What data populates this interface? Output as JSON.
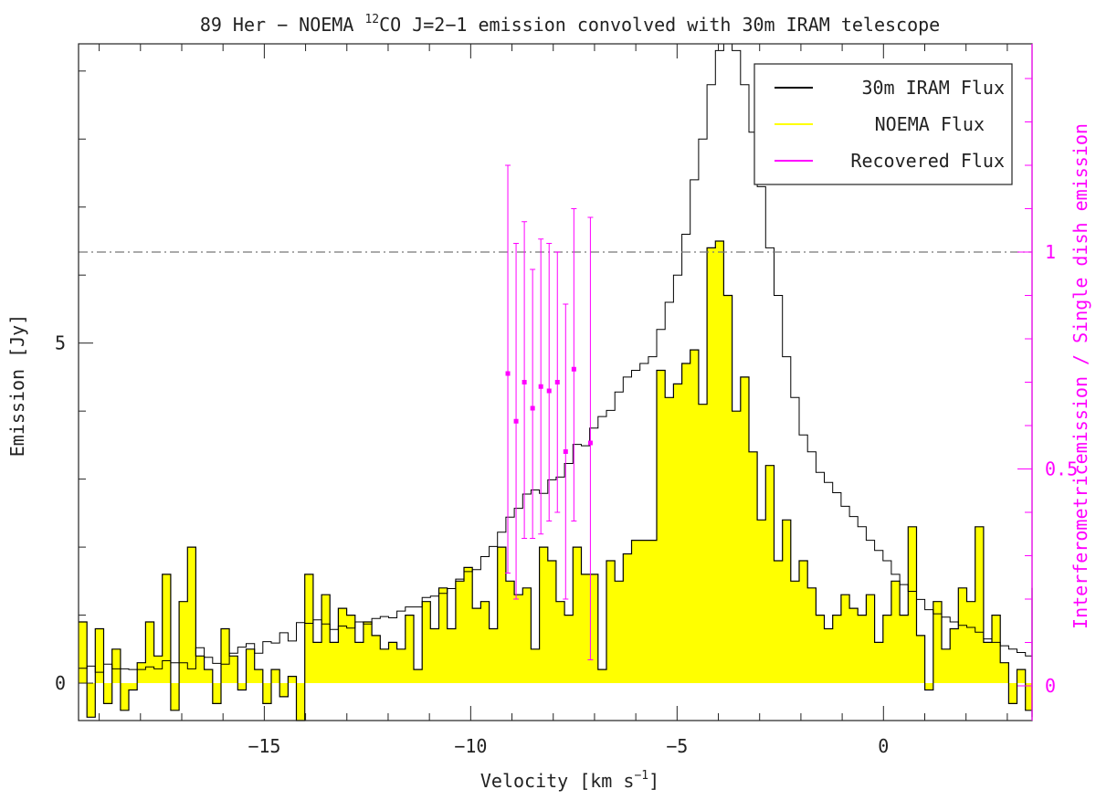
{
  "chart_data": {
    "type": "histogram",
    "title_prefix": "89 Her − NOEMA ",
    "title_sup": "12",
    "title_suffix": "CO J=2−1 emission convolved with 30m IRAM telescope",
    "xlabel_main": "Velocity [km s",
    "xlabel_sup": "−1",
    "xlabel_end": "]",
    "ylabel_left": "Emission [Jy]",
    "ylabel_right_a": "Interferometric",
    "ylabel_right_b": "emission / Single dish emission",
    "xlim": [
      -19.5,
      3.6
    ],
    "ylim_left": [
      -0.55,
      9.4
    ],
    "ylim_right": [
      -0.08,
      1.48
    ],
    "x_ticks": [
      {
        "value": -15,
        "label": "−15"
      },
      {
        "value": -10,
        "label": "−10"
      },
      {
        "value": -5,
        "label": "−5"
      },
      {
        "value": 0,
        "label": "0"
      }
    ],
    "y_ticks_left": [
      {
        "value": 0,
        "label": "0"
      },
      {
        "value": 5,
        "label": "5"
      }
    ],
    "y_ticks_right": [
      {
        "value": 0,
        "label": "0"
      },
      {
        "value": 0.5,
        "label": "0.5"
      },
      {
        "value": 1,
        "label": "1"
      }
    ],
    "reference_line_right": 1,
    "colors": {
      "iram": "#000000",
      "noema_fill": "#ffff00",
      "recovered": "#ff00ff",
      "right_axis": "#ff00ff",
      "reference": "#777777"
    },
    "legend": {
      "position": "top-right",
      "entries": [
        "30m IRAM Flux",
        "NOEMA Flux",
        "Recovered Flux"
      ]
    },
    "series": [
      {
        "name": "30m IRAM Flux",
        "step": 0.203,
        "x_start": -19.5,
        "values": [
          0.22,
          0.25,
          0.16,
          0.28,
          0.21,
          0.21,
          0.2,
          0.2,
          0.24,
          0.21,
          0.33,
          0.3,
          0.3,
          0.21,
          0.52,
          0.38,
          0.29,
          0.28,
          0.44,
          0.53,
          0.58,
          0.44,
          0.61,
          0.59,
          0.74,
          0.62,
          0.89,
          0.88,
          0.93,
          0.87,
          0.79,
          0.84,
          0.81,
          0.9,
          0.87,
          0.95,
          0.98,
          0.96,
          1.06,
          1.12,
          1.12,
          1.26,
          1.28,
          1.32,
          1.39,
          1.53,
          1.64,
          1.67,
          1.86,
          2.01,
          2.22,
          2.44,
          2.57,
          2.78,
          2.84,
          2.79,
          2.99,
          3.03,
          3.23,
          3.51,
          3.49,
          3.75,
          3.92,
          4.01,
          4.28,
          4.5,
          4.6,
          4.7,
          4.8,
          5.2,
          5.6,
          6.0,
          6.6,
          7.4,
          8.0,
          8.8,
          9.3,
          9.45,
          9.3,
          8.8,
          8.1,
          7.3,
          6.4,
          5.7,
          4.8,
          4.2,
          3.65,
          3.4,
          3.1,
          2.95,
          2.8,
          2.6,
          2.45,
          2.3,
          2.1,
          1.95,
          1.8,
          1.6,
          1.45,
          1.35,
          1.23,
          1.08,
          1.02,
          0.97,
          0.9,
          0.85,
          0.82,
          0.75,
          0.65,
          0.6,
          0.55,
          0.5,
          0.45,
          0.4,
          0.38,
          0.35,
          0.3,
          0.29,
          0.25,
          0.22,
          0.3,
          0.27,
          0.25,
          0.19,
          0.26,
          0.18,
          0.24,
          0.2,
          0.18,
          0.13,
          0.24,
          0.25,
          0.17,
          0.21,
          0.13,
          0.22,
          0.17,
          0.19,
          0.16,
          0.16,
          0.15,
          0.14,
          0.16,
          0.13,
          0.18,
          0.08,
          0.14,
          0.09
        ]
      },
      {
        "name": "NOEMA Flux",
        "step": 0.203,
        "x_start": -19.5,
        "values": [
          0.9,
          -0.5,
          0.8,
          -0.3,
          0.5,
          -0.4,
          -0.1,
          0.3,
          0.9,
          0.4,
          1.6,
          -0.4,
          1.2,
          2.0,
          0.4,
          0.2,
          -0.3,
          0.8,
          0.4,
          -0.1,
          0.5,
          0.2,
          -0.3,
          0.2,
          -0.2,
          0.1,
          -0.6,
          1.6,
          0.6,
          1.3,
          0.6,
          1.1,
          1.0,
          0.6,
          0.9,
          0.7,
          0.5,
          0.6,
          0.5,
          1.0,
          0.2,
          1.2,
          0.8,
          1.4,
          0.8,
          1.5,
          1.7,
          1.1,
          1.2,
          0.8,
          2.0,
          1.5,
          1.3,
          1.4,
          0.5,
          2.0,
          1.8,
          1.2,
          1.0,
          2.0,
          1.6,
          1.6,
          0.2,
          1.8,
          1.5,
          1.9,
          2.1,
          2.1,
          2.1,
          4.6,
          4.2,
          4.4,
          4.7,
          4.9,
          4.1,
          6.4,
          6.5,
          5.7,
          4.0,
          4.5,
          3.4,
          2.4,
          3.2,
          1.8,
          2.4,
          1.5,
          1.8,
          1.4,
          1.0,
          0.8,
          1.0,
          1.3,
          1.1,
          1.0,
          1.3,
          0.6,
          1.0,
          1.5,
          1.0,
          2.3,
          0.7,
          -0.1,
          1.2,
          0.5,
          0.8,
          1.4,
          1.2,
          2.3,
          0.6,
          1.0,
          0.3,
          -0.3,
          0.2,
          -0.4,
          0.3,
          0.1,
          0.3,
          -0.5,
          0.2,
          0.3,
          -0.3,
          0.9,
          0.5,
          0.3,
          0.9,
          0.1,
          -0.2,
          0.1,
          -0.3,
          0.2,
          0.1,
          0.6,
          -0.2,
          0.3,
          0.1,
          -0.1,
          -0.2,
          0.1,
          0.2,
          0.9,
          0.3,
          0.5,
          1.4,
          0.7,
          0.5,
          0.4,
          -0.4,
          0.7
        ]
      },
      {
        "name": "Recovered Flux",
        "points": [
          {
            "x": -9.1,
            "y": 0.72,
            "lo": 0.26,
            "hi": 1.2
          },
          {
            "x": -8.9,
            "y": 0.61,
            "lo": 0.2,
            "hi": 1.02
          },
          {
            "x": -8.7,
            "y": 0.7,
            "lo": 0.34,
            "hi": 1.07
          },
          {
            "x": -8.5,
            "y": 0.64,
            "lo": 0.34,
            "hi": 0.96
          },
          {
            "x": -8.3,
            "y": 0.69,
            "lo": 0.35,
            "hi": 1.03
          },
          {
            "x": -8.1,
            "y": 0.68,
            "lo": 0.38,
            "hi": 1.02
          },
          {
            "x": -7.9,
            "y": 0.7,
            "lo": 0.4,
            "hi": 1.0
          },
          {
            "x": -7.7,
            "y": 0.54,
            "lo": 0.2,
            "hi": 0.88
          },
          {
            "x": -7.5,
            "y": 0.73,
            "lo": 0.38,
            "hi": 1.1
          },
          {
            "x": -7.1,
            "y": 0.56,
            "lo": 0.06,
            "hi": 1.08
          }
        ]
      }
    ]
  }
}
